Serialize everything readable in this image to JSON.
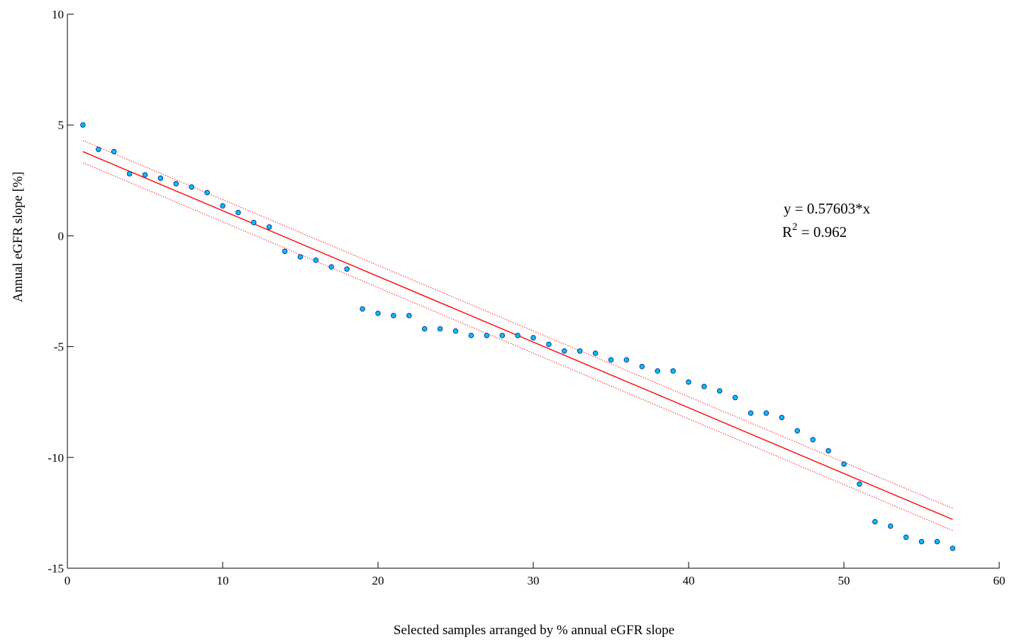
{
  "chart_data": {
    "type": "scatter",
    "title": "",
    "xlabel": "Selected samples arranged by % annual eGFR slope",
    "ylabel": "Annual eGFR slope [%]",
    "xlim": [
      0,
      60
    ],
    "ylim": [
      -15,
      10
    ],
    "xticks": [
      0,
      10,
      20,
      30,
      40,
      50,
      60
    ],
    "yticks": [
      10,
      5,
      0,
      -5,
      -10,
      -15
    ],
    "xtick_labels": [
      "0",
      "10",
      "20",
      "30",
      "40",
      "50",
      "60"
    ],
    "ytick_labels": [
      "10",
      "5",
      "0",
      "-5",
      "-10",
      "-15"
    ],
    "grid": false,
    "series": [
      {
        "kind": "points",
        "x": [
          1,
          2,
          3,
          4,
          5,
          6,
          7,
          8,
          9,
          10,
          11,
          12,
          13,
          14,
          15,
          16,
          17,
          18,
          19,
          20,
          21,
          22,
          23,
          24,
          25,
          26,
          27,
          28,
          29,
          30,
          31,
          32,
          33,
          34,
          35,
          36,
          37,
          38,
          39,
          40,
          41,
          42,
          43,
          44,
          45,
          46,
          47,
          48,
          49,
          50,
          51,
          52,
          53,
          54,
          55,
          56,
          57
        ],
        "y": [
          5.0,
          3.9,
          3.8,
          2.8,
          2.75,
          2.6,
          2.35,
          2.2,
          1.95,
          1.35,
          1.05,
          0.6,
          0.4,
          -0.7,
          -0.95,
          -1.1,
          -1.4,
          -1.5,
          -3.3,
          -3.5,
          -3.6,
          -3.6,
          -4.2,
          -4.2,
          -4.3,
          -4.5,
          -4.5,
          -4.5,
          -4.5,
          -4.6,
          -4.9,
          -5.2,
          -5.2,
          -5.3,
          -5.6,
          -5.6,
          -5.9,
          -6.1,
          -6.1,
          -6.6,
          -6.8,
          -7.0,
          -7.3,
          -8.0,
          -8.0,
          -8.2,
          -8.8,
          -9.2,
          -9.7,
          -10.3,
          -11.2,
          -12.9,
          -13.1,
          -13.6,
          -13.8,
          -13.8,
          -14.1
        ],
        "color": "#00bfff",
        "edgecolor": "#1a3a8a"
      },
      {
        "kind": "line",
        "x": [
          1,
          57
        ],
        "y": [
          3.8,
          -12.8
        ],
        "color": "#ff0000",
        "style": "solid"
      },
      {
        "kind": "line",
        "x": [
          1,
          57
        ],
        "y": [
          4.3,
          -12.3
        ],
        "color": "#ff0000",
        "style": "dotted"
      },
      {
        "kind": "line",
        "x": [
          1,
          57
        ],
        "y": [
          3.3,
          -13.3
        ],
        "color": "#ff0000",
        "style": "dotted"
      }
    ],
    "annotation": {
      "line1": "y = 0.57603*x",
      "line2_base": "R",
      "line2_sup": "2",
      "line2_rest": " = 0.962"
    }
  }
}
